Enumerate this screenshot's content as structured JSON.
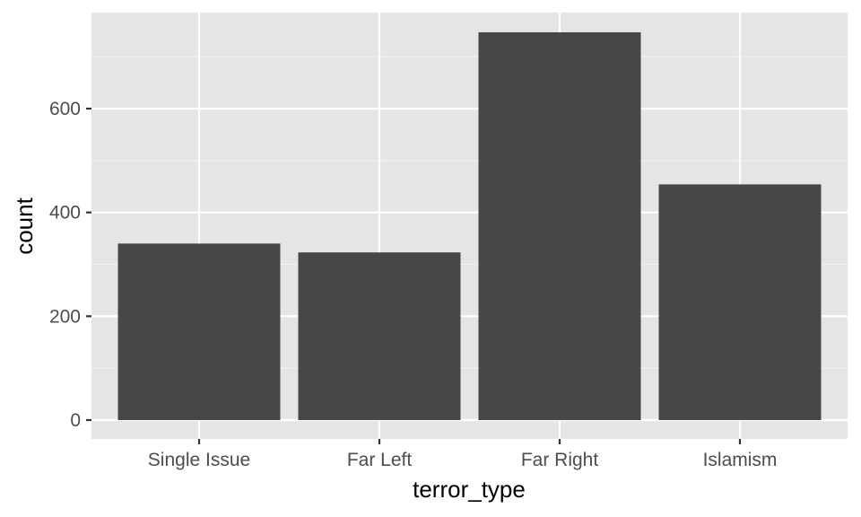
{
  "chart_data": {
    "type": "bar",
    "title": "",
    "xlabel": "terror_type",
    "ylabel": "count",
    "categories": [
      "Single Issue",
      "Far Left",
      "Far Right",
      "Islamism"
    ],
    "values": [
      340,
      323,
      747,
      454
    ],
    "ylim": [
      0,
      780
    ],
    "yticks": [
      0,
      200,
      400,
      600
    ],
    "yticks_labels": [
      "0",
      "200",
      "400",
      "600"
    ],
    "grid": true,
    "legend": "none",
    "colors": {
      "bar": "#474747",
      "panel": "#e5e5e5",
      "grid": "#ffffff"
    }
  }
}
